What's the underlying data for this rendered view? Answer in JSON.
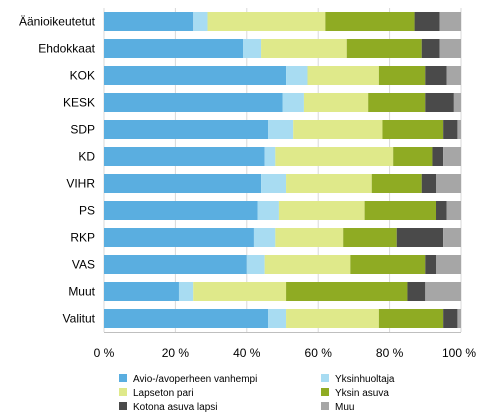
{
  "chart_data": {
    "type": "bar",
    "orientation": "horizontal",
    "stacked": true,
    "title": "",
    "xlabel": "",
    "ylabel": "",
    "xlim": [
      0,
      100
    ],
    "ticks": [
      "0 %",
      "20 %",
      "40 %",
      "60 %",
      "80 %",
      "100 %"
    ],
    "grid": true,
    "legend_position": "bottom",
    "categories": [
      "Äänioikeutetut",
      "Ehdokkaat",
      "KOK",
      "KESK",
      "SDP",
      "KD",
      "VIHR",
      "PS",
      "RKP",
      "VAS",
      "Muut",
      "Valitut"
    ],
    "series": [
      {
        "name": "Avio-/avoperheen vanhempi",
        "color": "#5aaee0",
        "values": [
          25,
          39,
          51,
          50,
          46,
          45,
          44,
          43,
          42,
          40,
          21,
          46
        ]
      },
      {
        "name": "Yksinhuoltaja",
        "color": "#a8dcf2",
        "values": [
          4,
          5,
          6,
          6,
          7,
          3,
          7,
          6,
          6,
          5,
          4,
          5
        ]
      },
      {
        "name": "Lapseton pari",
        "color": "#dfe98a",
        "values": [
          33,
          24,
          20,
          18,
          25,
          33,
          24,
          24,
          19,
          24,
          26,
          26
        ]
      },
      {
        "name": "Yksin asuva",
        "color": "#8fab23",
        "values": [
          25,
          21,
          13,
          16,
          17,
          11,
          14,
          20,
          15,
          21,
          34,
          18
        ]
      },
      {
        "name": "Kotona asuva lapsi",
        "color": "#4a4a4a",
        "values": [
          7,
          5,
          6,
          8,
          4,
          3,
          4,
          3,
          13,
          3,
          5,
          4
        ]
      },
      {
        "name": "Muu",
        "color": "#a6a6a6",
        "values": [
          6,
          6,
          4,
          2,
          1,
          5,
          7,
          4,
          5,
          7,
          10,
          1
        ]
      }
    ]
  }
}
